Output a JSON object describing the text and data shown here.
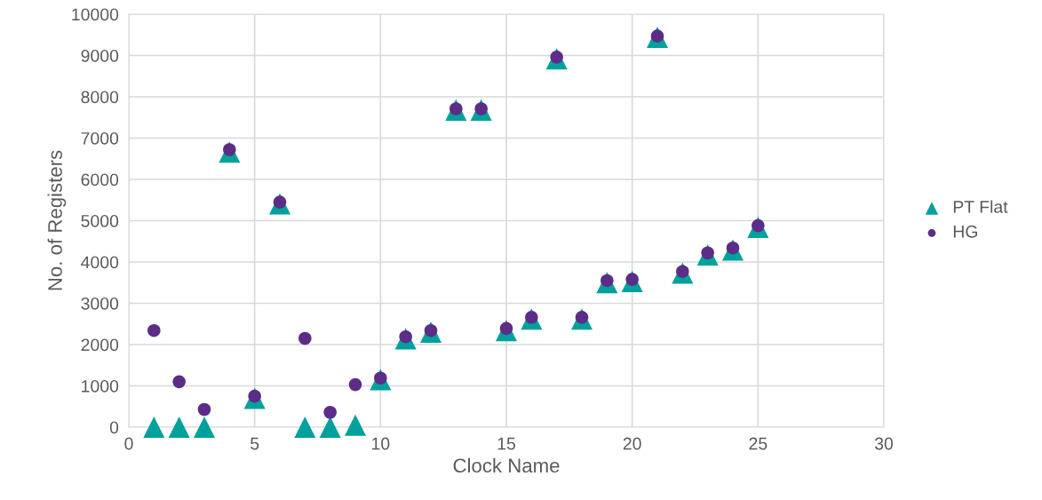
{
  "chart_data": {
    "type": "scatter",
    "xlabel": "Clock Name",
    "ylabel": "No. of Registers",
    "x": [
      1,
      2,
      3,
      4,
      5,
      6,
      7,
      8,
      9,
      10,
      11,
      12,
      13,
      14,
      15,
      16,
      17,
      18,
      19,
      20,
      21,
      22,
      23,
      24,
      25
    ],
    "series": [
      {
        "name": "PT Flat",
        "color": "#00a19c",
        "marker": "triangle",
        "values": [
          0,
          0,
          0,
          6660,
          700,
          5410,
          0,
          0,
          50,
          1150,
          2140,
          2300,
          7680,
          7680,
          2340,
          2620,
          8920,
          2620,
          3500,
          3530,
          9440,
          3730,
          4170,
          4290,
          4840
        ]
      },
      {
        "name": "HG",
        "color": "#5c2d87",
        "marker": "circle",
        "values": [
          2340,
          1100,
          430,
          6720,
          750,
          5450,
          2150,
          360,
          1030,
          1190,
          2190,
          2340,
          7710,
          7710,
          2390,
          2660,
          8960,
          2660,
          3550,
          3580,
          9470,
          3770,
          4220,
          4340,
          4880
        ]
      }
    ],
    "xlim": [
      0,
      30
    ],
    "xticks": [
      0,
      5,
      10,
      15,
      20,
      25,
      30
    ],
    "ylim": [
      0,
      10000
    ],
    "yticks": [
      0,
      1000,
      2000,
      3000,
      4000,
      5000,
      6000,
      7000,
      8000,
      9000,
      10000
    ],
    "grid": true,
    "legend": "right"
  }
}
